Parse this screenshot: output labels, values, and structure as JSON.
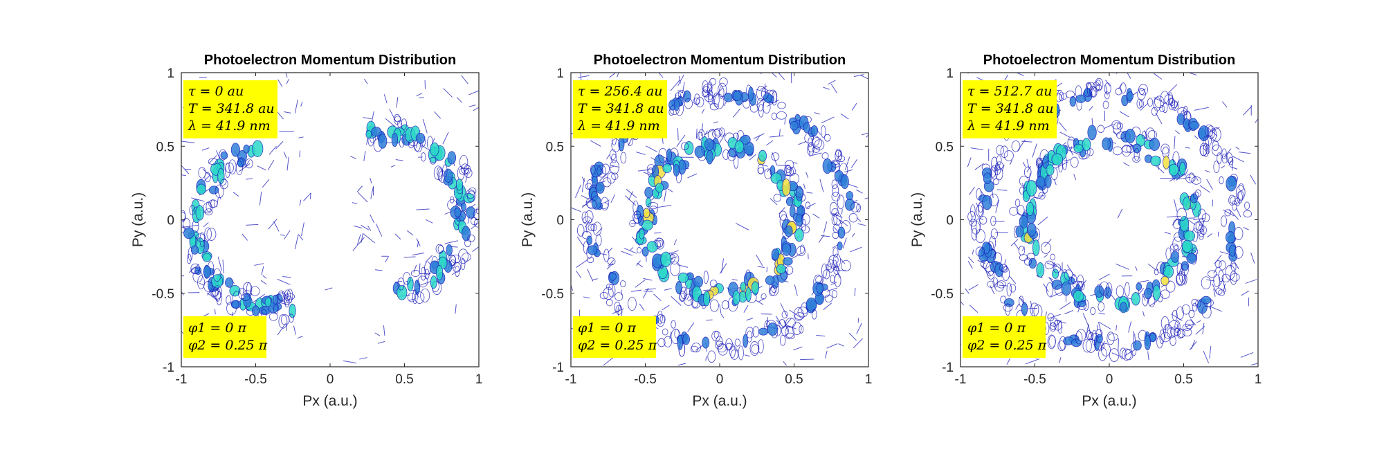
{
  "chart_data": [
    {
      "type": "contour",
      "title": "Photoelectron Momentum Distribution",
      "xlabel": "Px (a.u.)",
      "ylabel": "Py (a.u.)",
      "xlim": [
        -1,
        1
      ],
      "ylim": [
        -1,
        1
      ],
      "xticks": [
        -1,
        -0.5,
        0,
        0.5,
        1
      ],
      "yticks": [
        -1,
        -0.5,
        0,
        0.5,
        1
      ],
      "xtick_labels": [
        "-1",
        "-0.5",
        "0",
        "0.5",
        "1"
      ],
      "ytick_labels": [
        "-1",
        "-0.5",
        "0",
        "0.5",
        "1"
      ],
      "grid": false,
      "annotations": {
        "top": [
          "τ = 0 au",
          "T = 341.8 au",
          "λ = 41.9 nm"
        ],
        "bottom": [
          "φ1 = 0 π",
          "φ2 = 0.25 π"
        ]
      },
      "structures": [
        {
          "shape": "arc",
          "cx": -0.35,
          "cy": -0.05,
          "r": 0.55,
          "angle_range_deg": [
            100,
            280
          ],
          "intensity": 0.8
        },
        {
          "shape": "arc",
          "cx": 0.35,
          "cy": 0.05,
          "r": 0.55,
          "angle_range_deg": [
            -80,
            100
          ],
          "intensity": 0.8
        }
      ]
    },
    {
      "type": "contour",
      "title": "Photoelectron Momentum Distribution",
      "xlabel": "Px (a.u.)",
      "ylabel": "Py (a.u.)",
      "xlim": [
        -1,
        1
      ],
      "ylim": [
        -1,
        1
      ],
      "xticks": [
        -1,
        -0.5,
        0,
        0.5,
        1
      ],
      "yticks": [
        -1,
        -0.5,
        0,
        0.5,
        1
      ],
      "xtick_labels": [
        "-1",
        "-0.5",
        "0",
        "0.5",
        "1"
      ],
      "ytick_labels": [
        "-1",
        "-0.5",
        "0",
        "0.5",
        "1"
      ],
      "grid": false,
      "annotations": {
        "top": [
          "τ = 256.4 au",
          "T = 341.8 au",
          "λ = 41.9 nm"
        ],
        "bottom": [
          "φ1 = 0 π",
          "φ2 = 0.25 π"
        ]
      },
      "structures": [
        {
          "shape": "ring",
          "cx": 0,
          "cy": 0,
          "r": 0.5,
          "intensity": 0.9
        },
        {
          "shape": "ring",
          "cx": 0,
          "cy": 0,
          "r": 0.85,
          "intensity": 0.6
        }
      ]
    },
    {
      "type": "contour",
      "title": "Photoelectron Momentum Distribution",
      "xlabel": "Px (a.u.)",
      "ylabel": "Py (a.u.)",
      "xlim": [
        -1,
        1
      ],
      "ylim": [
        -1,
        1
      ],
      "xticks": [
        -1,
        -0.5,
        0,
        0.5,
        1
      ],
      "yticks": [
        -1,
        -0.5,
        0,
        0.5,
        1
      ],
      "xtick_labels": [
        "-1",
        "-0.5",
        "0",
        "0.5",
        "1"
      ],
      "ytick_labels": [
        "-1",
        "-0.5",
        "0",
        "0.5",
        "1"
      ],
      "grid": false,
      "annotations": {
        "top": [
          "τ = 512.7 au",
          "T = 341.8 au",
          "λ = 41.9 nm"
        ],
        "bottom": [
          "φ1 = 0 π",
          "φ2 = 0.25 π"
        ]
      },
      "structures": [
        {
          "shape": "ring",
          "cx": 0,
          "cy": 0,
          "r": 0.55,
          "intensity": 0.85
        },
        {
          "shape": "ring",
          "cx": 0,
          "cy": 0,
          "r": 0.85,
          "intensity": 0.55
        }
      ]
    }
  ],
  "colors": {
    "contour_low": "#1a1ab8",
    "contour_mid": "#2f7fd8",
    "contour_high": "#2ad8c8",
    "contour_peak": "#f0e040",
    "annotation_bg": "#ffff00",
    "axis": "#262626"
  }
}
